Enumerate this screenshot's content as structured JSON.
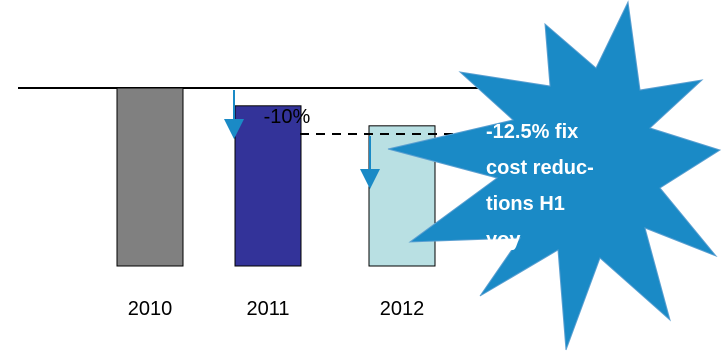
{
  "chart_data": {
    "type": "bar",
    "categories": [
      "2010",
      "2011",
      "2012"
    ],
    "values": [
      100,
      90,
      78.75
    ],
    "ylim": [
      0,
      100
    ],
    "colors": [
      "#808080",
      "#333399",
      "#b9e0e3"
    ],
    "annotations": {
      "change_2011": "-10%",
      "callout_lines": [
        "-12.5% fix",
        "cost reduc-",
        "tions H1",
        "yoy"
      ]
    },
    "callout_color": "#1a8ac6"
  }
}
